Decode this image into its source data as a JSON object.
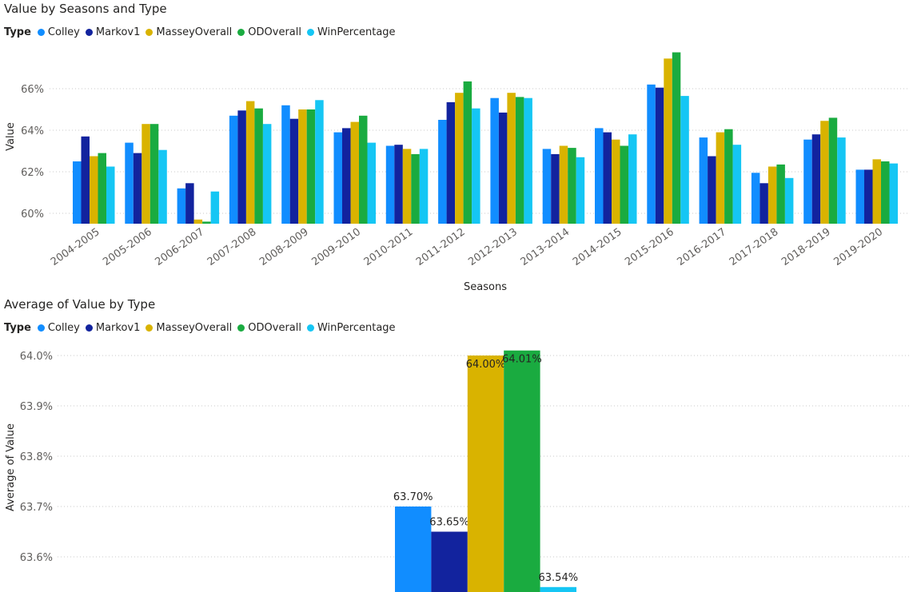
{
  "chart_data": [
    {
      "type": "bar",
      "title": "Value by Seasons and Type",
      "legend_title": "Type",
      "legend_position": "top-left",
      "xlabel": "Seasons",
      "ylabel": "Value",
      "y_tick_labels": [
        "60%",
        "62%",
        "64%",
        "66%"
      ],
      "ylim": [
        59.5,
        67.5
      ],
      "grid": true,
      "categories": [
        "2004-2005",
        "2005-2006",
        "2006-2007",
        "2007-2008",
        "2008-2009",
        "2009-2010",
        "2010-2011",
        "2011-2012",
        "2012-2013",
        "2013-2014",
        "2014-2015",
        "2015-2016",
        "2016-2017",
        "2017-2018",
        "2018-2019",
        "2019-2020"
      ],
      "series": [
        {
          "name": "Colley",
          "color": "#118dff",
          "values": [
            62.5,
            63.4,
            61.2,
            64.7,
            65.2,
            63.9,
            63.25,
            64.5,
            65.55,
            63.1,
            64.1,
            66.2,
            63.65,
            61.95,
            63.55,
            62.1
          ]
        },
        {
          "name": "Markov1",
          "color": "#12239e",
          "values": [
            63.7,
            62.9,
            61.45,
            64.95,
            64.55,
            64.1,
            63.3,
            65.35,
            64.85,
            62.85,
            63.9,
            66.05,
            62.75,
            61.45,
            63.8,
            62.1
          ]
        },
        {
          "name": "MasseyOverall",
          "color": "#d9b300",
          "values": [
            62.75,
            64.3,
            59.7,
            65.4,
            65.0,
            64.4,
            63.1,
            65.8,
            65.8,
            63.25,
            63.55,
            67.45,
            63.9,
            62.25,
            64.45,
            62.6
          ]
        },
        {
          "name": "ODOverall",
          "color": "#1aab40",
          "values": [
            62.9,
            64.3,
            59.6,
            65.05,
            65.0,
            64.7,
            62.85,
            66.35,
            65.6,
            63.15,
            63.25,
            67.75,
            64.05,
            62.35,
            64.6,
            62.5
          ]
        },
        {
          "name": "WinPercentage",
          "color": "#15c6f4",
          "values": [
            62.25,
            63.05,
            61.05,
            64.3,
            65.45,
            63.4,
            63.1,
            65.05,
            65.55,
            62.7,
            63.8,
            65.65,
            63.3,
            61.7,
            63.65,
            62.4
          ]
        }
      ]
    },
    {
      "type": "bar",
      "title": "Average of Value by Type",
      "legend_title": "Type",
      "legend_position": "top-left",
      "ylabel": "Average of Value",
      "y_tick_labels": [
        "63.6%",
        "63.7%",
        "63.8%",
        "63.9%",
        "64.0%"
      ],
      "ylim": [
        63.54,
        64.02
      ],
      "grid": true,
      "categories": [
        "Colley",
        "Markov1",
        "MasseyOverall",
        "ODOverall",
        "WinPercentage"
      ],
      "colors": [
        "#118dff",
        "#12239e",
        "#d9b300",
        "#1aab40",
        "#15c6f4"
      ],
      "values": [
        63.7,
        63.65,
        64.0,
        64.01,
        63.54
      ],
      "data_labels": [
        "63.70%",
        "63.65%",
        "64.00%",
        "64.01%",
        "63.54%"
      ]
    }
  ]
}
